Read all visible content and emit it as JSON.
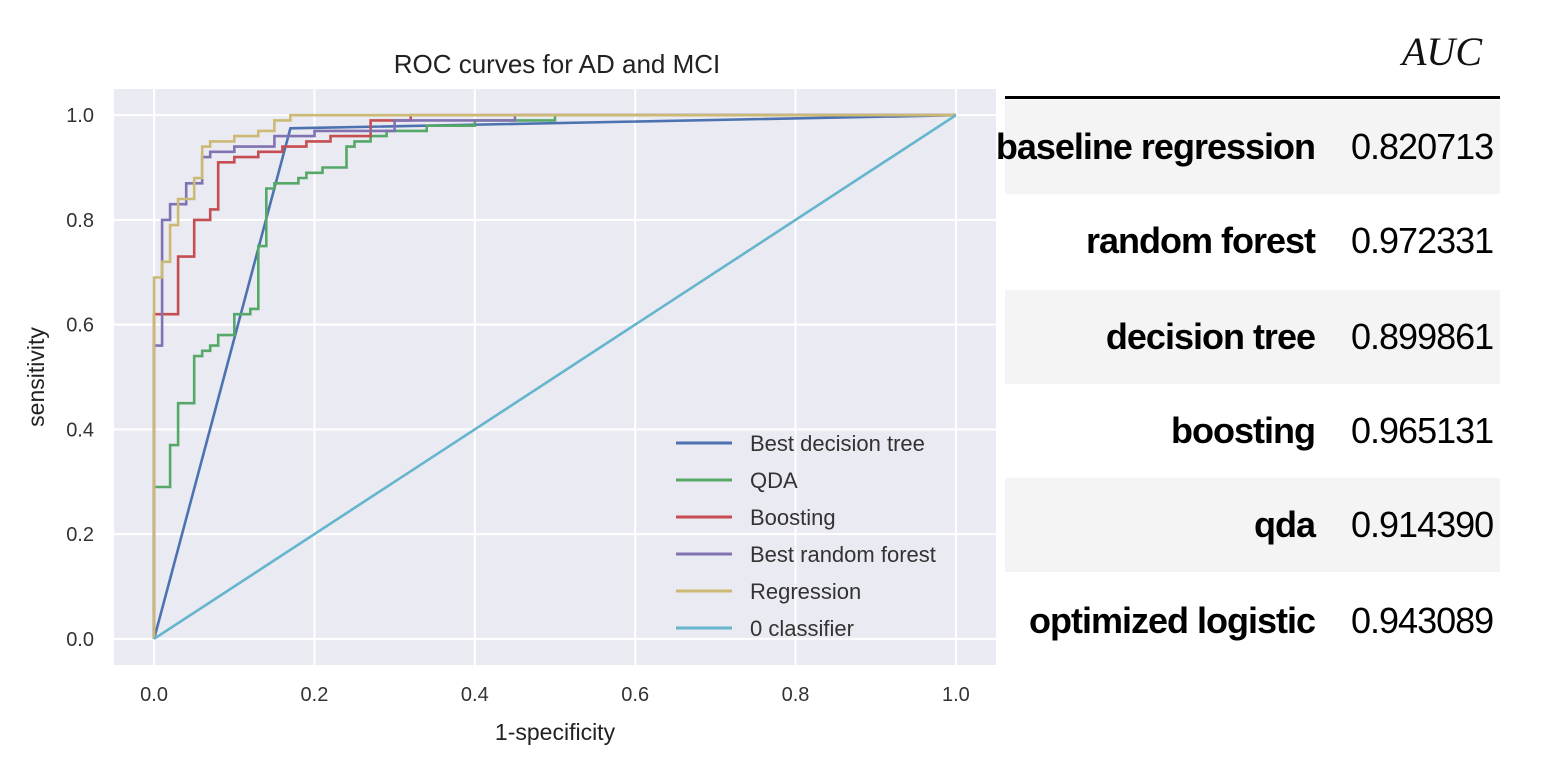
{
  "chart_data": {
    "type": "line",
    "title": "ROC curves for AD and MCI",
    "xlabel": "1-specificity",
    "ylabel": "sensitivity",
    "xlim": [
      -0.05,
      1.05
    ],
    "ylim": [
      -0.05,
      1.05
    ],
    "xticks": [
      "0.0",
      "0.2",
      "0.4",
      "0.6",
      "0.8",
      "1.0"
    ],
    "yticks": [
      "0.0",
      "0.2",
      "0.4",
      "0.6",
      "0.8",
      "1.0"
    ],
    "grid": true,
    "legend_position": "lower-right",
    "series": [
      {
        "name": "Best decision tree",
        "color": "#4c72b0",
        "x": [
          0,
          0.17,
          1.0
        ],
        "y": [
          0,
          0.975,
          1.0
        ]
      },
      {
        "name": "QDA",
        "color": "#55a868",
        "x": [
          0,
          0.0,
          0.02,
          0.02,
          0.03,
          0.03,
          0.05,
          0.05,
          0.06,
          0.06,
          0.07,
          0.07,
          0.08,
          0.08,
          0.1,
          0.1,
          0.12,
          0.12,
          0.13,
          0.13,
          0.14,
          0.14,
          0.15,
          0.15,
          0.18,
          0.18,
          0.19,
          0.19,
          0.21,
          0.21,
          0.24,
          0.24,
          0.25,
          0.25,
          0.27,
          0.27,
          0.29,
          0.29,
          0.34,
          0.34,
          0.4,
          0.4,
          0.5,
          0.5,
          1.0
        ],
        "y": [
          0,
          0.29,
          0.29,
          0.37,
          0.37,
          0.45,
          0.45,
          0.54,
          0.54,
          0.55,
          0.55,
          0.56,
          0.56,
          0.58,
          0.58,
          0.62,
          0.62,
          0.63,
          0.63,
          0.75,
          0.75,
          0.86,
          0.86,
          0.87,
          0.87,
          0.88,
          0.88,
          0.89,
          0.89,
          0.9,
          0.9,
          0.94,
          0.94,
          0.95,
          0.95,
          0.96,
          0.96,
          0.97,
          0.97,
          0.98,
          0.98,
          0.99,
          0.99,
          1.0,
          1.0
        ]
      },
      {
        "name": "Boosting",
        "color": "#c44e52",
        "x": [
          0,
          0.0,
          0.03,
          0.03,
          0.05,
          0.05,
          0.07,
          0.07,
          0.08,
          0.08,
          0.1,
          0.1,
          0.13,
          0.13,
          0.16,
          0.16,
          0.19,
          0.19,
          0.22,
          0.22,
          0.27,
          0.27,
          0.32,
          0.32,
          1.0
        ],
        "y": [
          0,
          0.62,
          0.62,
          0.73,
          0.73,
          0.8,
          0.8,
          0.82,
          0.82,
          0.91,
          0.91,
          0.92,
          0.92,
          0.93,
          0.93,
          0.94,
          0.94,
          0.95,
          0.95,
          0.96,
          0.96,
          0.99,
          0.99,
          1.0,
          1.0
        ]
      },
      {
        "name": "Best random forest",
        "color": "#8172b2",
        "x": [
          0,
          0.0,
          0.01,
          0.01,
          0.02,
          0.02,
          0.04,
          0.04,
          0.06,
          0.06,
          0.07,
          0.07,
          0.1,
          0.1,
          0.15,
          0.15,
          0.2,
          0.2,
          0.3,
          0.3,
          0.45,
          0.45,
          1.0
        ],
        "y": [
          0,
          0.56,
          0.56,
          0.8,
          0.8,
          0.83,
          0.83,
          0.87,
          0.87,
          0.92,
          0.92,
          0.93,
          0.93,
          0.94,
          0.94,
          0.96,
          0.96,
          0.97,
          0.97,
          0.99,
          0.99,
          1.0,
          1.0
        ]
      },
      {
        "name": "Regression",
        "color": "#ccb974",
        "x": [
          0,
          0.0,
          0.01,
          0.01,
          0.02,
          0.02,
          0.03,
          0.03,
          0.05,
          0.05,
          0.06,
          0.06,
          0.07,
          0.07,
          0.1,
          0.1,
          0.13,
          0.13,
          0.15,
          0.15,
          0.17,
          0.17,
          0.6,
          0.6,
          1.0
        ],
        "y": [
          0,
          0.69,
          0.69,
          0.72,
          0.72,
          0.79,
          0.79,
          0.84,
          0.84,
          0.88,
          0.88,
          0.94,
          0.94,
          0.95,
          0.95,
          0.96,
          0.96,
          0.97,
          0.97,
          0.99,
          0.99,
          1.0,
          1.0,
          1.0,
          1.0
        ]
      },
      {
        "name": " 0 classifier",
        "color": "#64b5cd",
        "x": [
          0,
          1.0
        ],
        "y": [
          0,
          1.0
        ]
      }
    ]
  },
  "auc_table": {
    "header": "AUC",
    "rows": [
      {
        "name": "baseline regression",
        "value": "0.820713"
      },
      {
        "name": "random forest",
        "value": "0.972331"
      },
      {
        "name": "decision tree",
        "value": "0.899861"
      },
      {
        "name": "boosting",
        "value": "0.965131"
      },
      {
        "name": "qda",
        "value": "0.914390"
      },
      {
        "name": "optimized logistic",
        "value": "0.943089"
      }
    ]
  }
}
